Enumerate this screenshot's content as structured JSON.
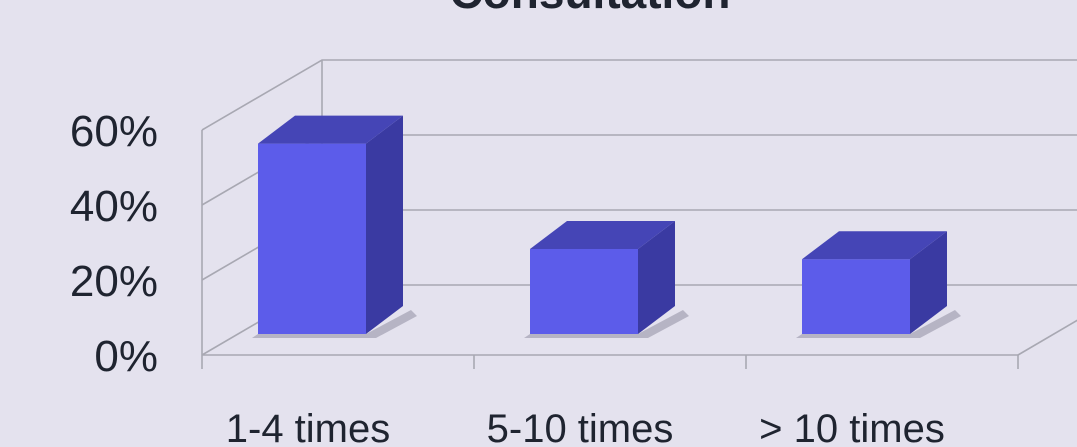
{
  "chart_data": {
    "type": "bar",
    "title": "Consultation",
    "categories": [
      "1-4 times",
      "5-10 times",
      "> 10 times"
    ],
    "values": [
      56,
      25,
      22
    ],
    "yticks": [
      "0%",
      "20%",
      "40%",
      "60%"
    ],
    "ylim": [
      0,
      60
    ],
    "unit": "%",
    "grid": true,
    "colors": {
      "bar_front": "#5c5cea",
      "bar_side": "#3a3aa2",
      "bar_top": "#4545b6",
      "shadow": "#b6b4c4",
      "grid": "#a8a8b2",
      "text": "#1f2430",
      "background": "#e4e2ee"
    }
  }
}
